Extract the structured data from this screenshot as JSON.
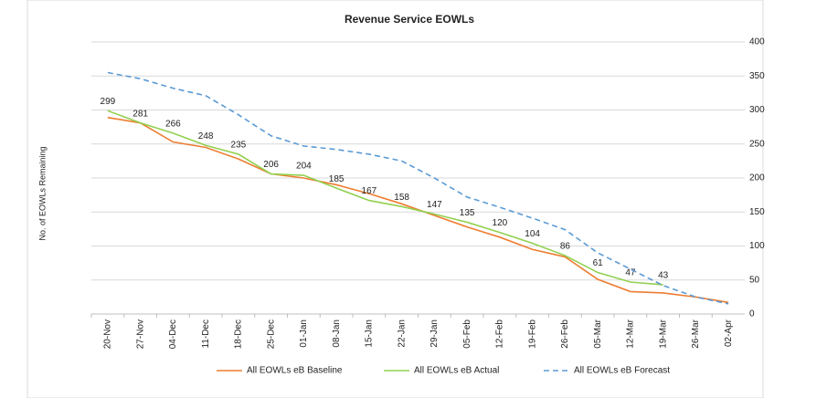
{
  "chart_data": {
    "type": "line",
    "title": "Revenue Service EOWLs",
    "y_label": "No. of EOWLs Remaining",
    "y_axis_side": "right",
    "categories": [
      "20-Nov",
      "27-Nov",
      "04-Dec",
      "11-Dec",
      "18-Dec",
      "25-Dec",
      "01-Jan",
      "08-Jan",
      "15-Jan",
      "22-Jan",
      "29-Jan",
      "05-Feb",
      "12-Feb",
      "19-Feb",
      "26-Feb",
      "05-Mar",
      "12-Mar",
      "19-Mar",
      "26-Mar",
      "02-Apr"
    ],
    "series": [
      {
        "name": "All EOWLs eB Baseline",
        "color": "#ed7d31",
        "line_style": "solid",
        "values": [
          289,
          281,
          253,
          245,
          228,
          206,
          200,
          190,
          177,
          162,
          145,
          128,
          113,
          95,
          84,
          51,
          33,
          31,
          25,
          17
        ]
      },
      {
        "name": "All EOWLs eB Actual",
        "color": "#92d050",
        "line_style": "solid",
        "show_value_labels": true,
        "values": [
          299,
          281,
          266,
          248,
          235,
          206,
          204,
          185,
          167,
          158,
          147,
          135,
          120,
          104,
          86,
          61,
          47,
          43,
          null,
          null
        ]
      },
      {
        "name": "All EOWLs eB Forecast",
        "color": "#5b9bd5",
        "line_style": "dashed",
        "values": [
          355,
          346,
          332,
          321,
          293,
          262,
          247,
          242,
          235,
          225,
          200,
          172,
          157,
          141,
          124,
          90,
          66,
          42,
          25,
          15
        ]
      }
    ],
    "ylim": [
      0,
      400
    ],
    "yticks": [
      0,
      50,
      100,
      150,
      200,
      250,
      300,
      350,
      400
    ],
    "grid": true,
    "legend": "bottom"
  }
}
